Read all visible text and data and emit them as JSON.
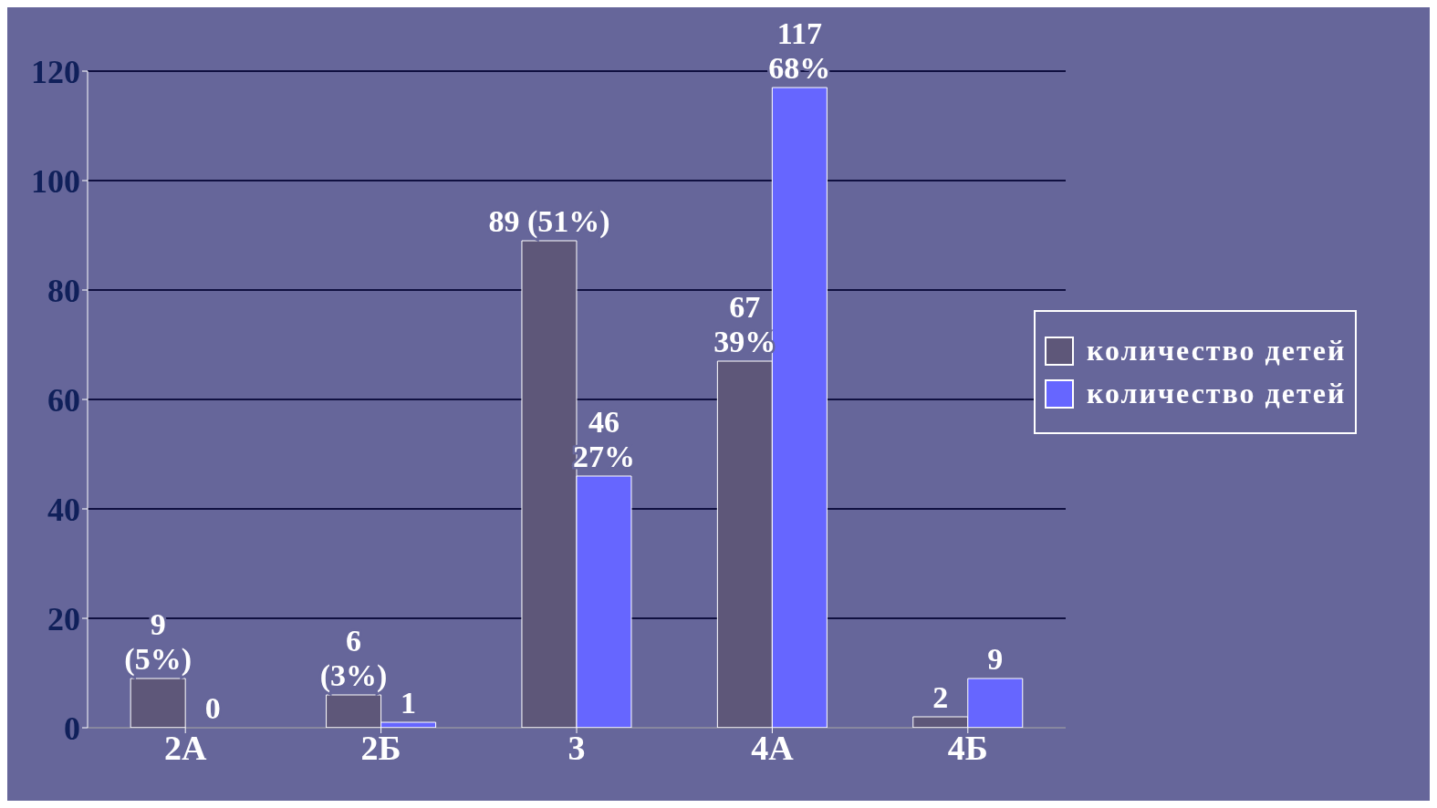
{
  "chart_data": {
    "type": "bar",
    "categories": [
      "2А",
      "2Б",
      "3",
      "4А",
      "4Б"
    ],
    "series": [
      {
        "name": "количество детей",
        "color": "#5e5779",
        "values": [
          9,
          6,
          89,
          67,
          2
        ],
        "value_labels": [
          "9\n(5%)",
          "6\n(3%)",
          "89 (51%)",
          "67\n39%",
          "2"
        ]
      },
      {
        "name": "количество детей",
        "color": "#6666ff",
        "values": [
          0,
          1,
          46,
          117,
          9
        ],
        "value_labels": [
          "0",
          "1",
          "46\n27%",
          "117\n68%",
          "9"
        ]
      }
    ],
    "ylim": [
      0,
      120
    ],
    "yticks": [
      0,
      20,
      40,
      60,
      80,
      100,
      120
    ],
    "grid": "y",
    "legend": "right"
  }
}
